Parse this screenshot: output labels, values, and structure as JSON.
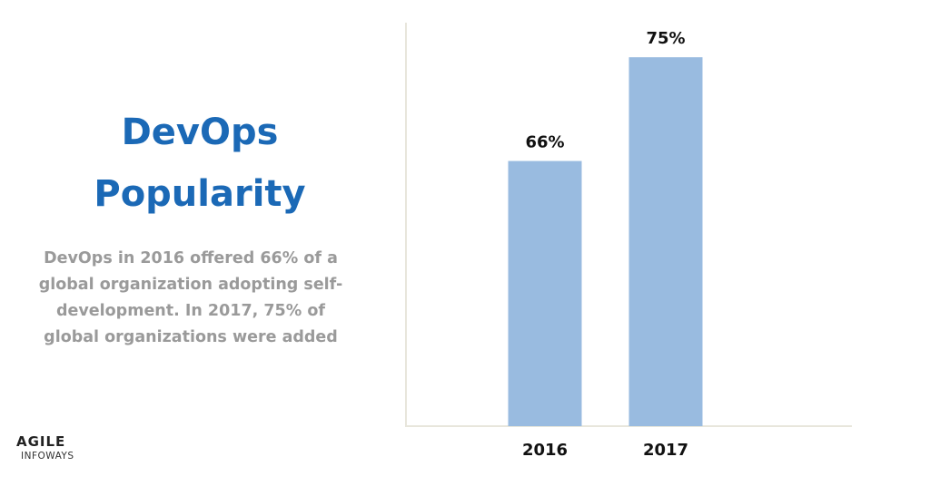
{
  "title_lines": [
    "DevOps",
    "Popularity"
  ],
  "description": "DevOps in 2016 offered 66% of a global organization adopting self-development. In 2017, 75% of global organizations were added",
  "logo": {
    "line1": "AGILE",
    "line2": "INFOWAYS"
  },
  "colors": {
    "title": "#1b69b6",
    "bar": "#99bbe0",
    "axis": "#e8e6dc",
    "text": "#9a9a9a"
  },
  "chart_data": {
    "type": "bar",
    "title": "DevOps Popularity",
    "categories": [
      "2016",
      "2017"
    ],
    "values": [
      66,
      75
    ],
    "data_labels": [
      "66%",
      "75%"
    ],
    "xlabel": "",
    "ylabel": "",
    "ylim": [
      43,
      78
    ],
    "grid": false,
    "legend": "none"
  }
}
